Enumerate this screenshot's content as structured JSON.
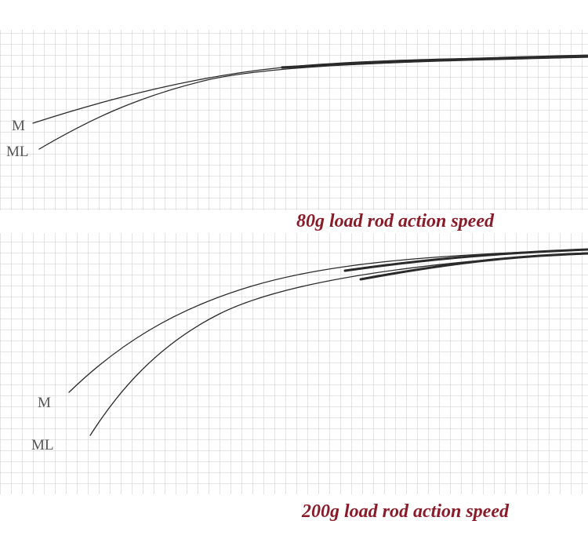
{
  "panels": [
    {
      "labels": [
        "M",
        "ML"
      ],
      "caption": "80g load rod action speed"
    },
    {
      "labels": [
        "M",
        "ML"
      ],
      "caption": "200g load rod action speed"
    }
  ]
}
